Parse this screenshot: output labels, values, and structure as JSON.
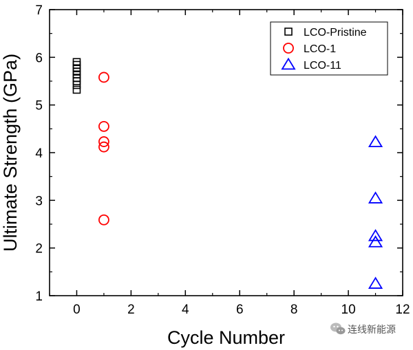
{
  "chart_data": {
    "type": "scatter",
    "xlabel": "Cycle Number",
    "ylabel": "Ultimate Strength (GPa)",
    "xlim": [
      -1,
      12
    ],
    "ylim": [
      1,
      7
    ],
    "xticks": [
      0,
      2,
      4,
      6,
      8,
      10,
      12
    ],
    "yticks": [
      1,
      2,
      3,
      4,
      5,
      6,
      7
    ],
    "grid": false,
    "legend_position": "top-right",
    "series": [
      {
        "name": "LCO-Pristine",
        "marker": "square",
        "color": "#000000",
        "points": [
          [
            0,
            5.32
          ],
          [
            0,
            5.42
          ],
          [
            0,
            5.5
          ],
          [
            0,
            5.57
          ],
          [
            0,
            5.64
          ],
          [
            0,
            5.7
          ],
          [
            0,
            5.77
          ],
          [
            0,
            5.84
          ],
          [
            0,
            5.9
          ]
        ]
      },
      {
        "name": "LCO-1",
        "marker": "circle",
        "color": "#ff0000",
        "points": [
          [
            1,
            5.58
          ],
          [
            1,
            4.55
          ],
          [
            1,
            4.23
          ],
          [
            1,
            4.12
          ],
          [
            1,
            2.59
          ]
        ]
      },
      {
        "name": "LCO-11",
        "marker": "triangle",
        "color": "#0000ff",
        "points": [
          [
            11,
            4.22
          ],
          [
            11,
            3.04
          ],
          [
            11,
            2.25
          ],
          [
            11,
            2.12
          ],
          [
            11,
            1.25
          ]
        ]
      }
    ]
  },
  "watermark": {
    "text": "连线新能源",
    "icon": "wechat-icon"
  }
}
